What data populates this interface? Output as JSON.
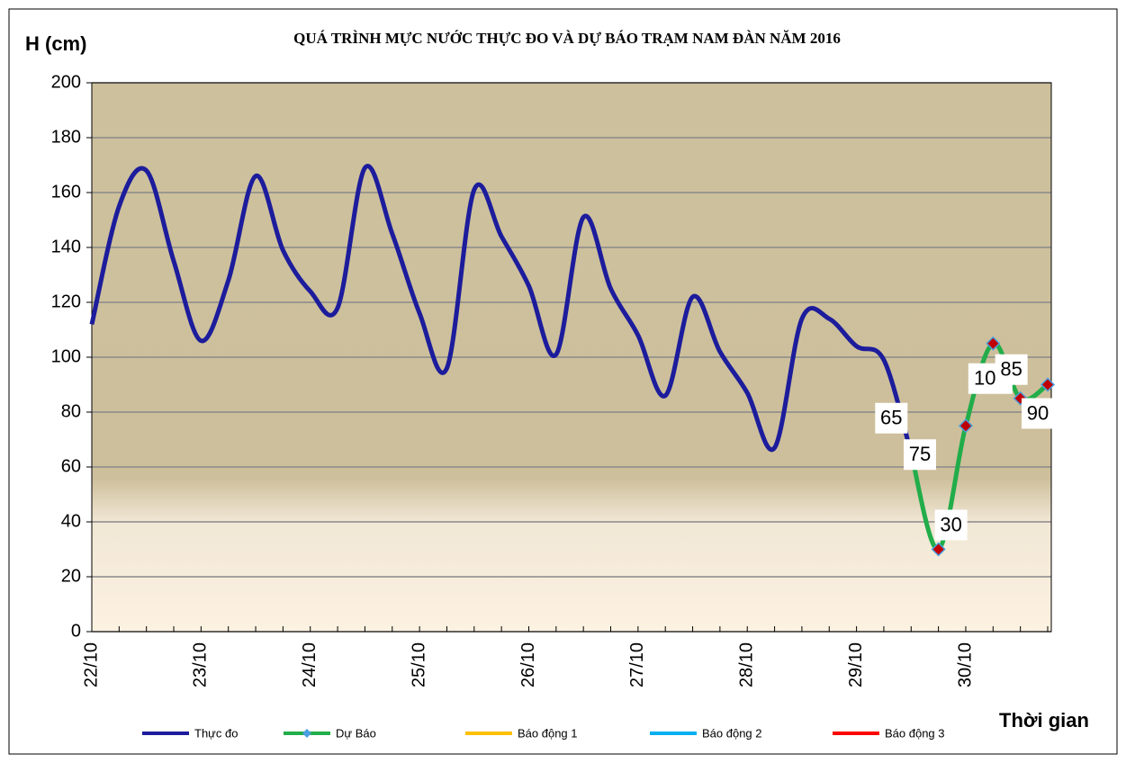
{
  "chart_data": {
    "type": "line",
    "title": "QUÁ TRÌNH MỰC NƯỚC THỰC ĐO VÀ DỰ BÁO TRẠM  NAM ĐÀN  NĂM 2016",
    "y_label": "H (cm)",
    "x_label": "Thời gian",
    "categories": [
      "22/10",
      null,
      null,
      null,
      "23/10",
      null,
      null,
      null,
      "24/10",
      null,
      null,
      null,
      "25/10",
      null,
      null,
      null,
      "26/10",
      null,
      null,
      null,
      "27/10",
      null,
      null,
      null,
      "28/10",
      null,
      null,
      null,
      "29/10",
      null,
      null,
      null,
      "30/10",
      null,
      null,
      null
    ],
    "ylim": [
      0,
      200
    ],
    "yticks": [
      0,
      20,
      40,
      60,
      80,
      100,
      120,
      140,
      160,
      180,
      200
    ],
    "grid": true,
    "series": [
      {
        "name": "Thực đo",
        "color": "#1c1c9c",
        "values": [
          112,
          155,
          168,
          135,
          106,
          128,
          166,
          139,
          124,
          118,
          169,
          145,
          116,
          96,
          161,
          144,
          126,
          101,
          151,
          125,
          108,
          86,
          122,
          102,
          87,
          67,
          114,
          114,
          104,
          99,
          65,
          null,
          null,
          null,
          null,
          null
        ]
      },
      {
        "name": "Dự Báo",
        "color": "#22ad4a",
        "marker_color": "#c00000",
        "values": [
          null,
          null,
          null,
          null,
          null,
          null,
          null,
          null,
          null,
          null,
          null,
          null,
          null,
          null,
          null,
          null,
          null,
          null,
          null,
          null,
          null,
          null,
          null,
          null,
          null,
          null,
          null,
          null,
          null,
          null,
          65,
          30,
          75,
          105,
          85,
          90
        ]
      },
      {
        "name": "Báo động  1",
        "color": "#ffc000"
      },
      {
        "name": "Báo động  2",
        "color": "#00b0f0"
      },
      {
        "name": "Báo động  3",
        "color": "#ff0000"
      }
    ]
  }
}
